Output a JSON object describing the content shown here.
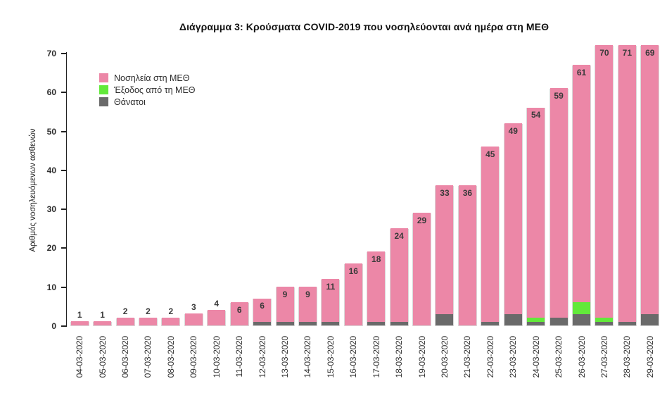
{
  "title": "Διάγραμμα 3: Κρούσματα COVID-2019 που νοσηλεύονται ανά ημέρα στη ΜΕΘ",
  "y_axis": {
    "label": "Αριθμός νοσηλευόμενων ασθενών",
    "ticks": [
      0,
      10,
      20,
      30,
      40,
      50,
      60,
      70
    ]
  },
  "legend": {
    "items": [
      {
        "label": "Νοσηλεία στη ΜΕΘ",
        "color": "#ec87a7"
      },
      {
        "label": "Έξοδος από τη ΜΕΘ",
        "color": "#62e93a"
      },
      {
        "label": "Θάνατοι",
        "color": "#6a6a6a"
      }
    ]
  },
  "chart_data": {
    "type": "bar",
    "stacked": true,
    "title": "Διάγραμμα 3: Κρούσματα COVID-2019 που νοσηλεύονται ανά ημέρα στη ΜΕΘ",
    "xlabel": "",
    "ylabel": "Αριθμός νοσηλευόμενων ασθενών",
    "ylim": [
      0,
      70
    ],
    "yticks": [
      0,
      10,
      20,
      30,
      40,
      50,
      60,
      70
    ],
    "grid": false,
    "legend_position": "top-left",
    "categories": [
      "04-03-2020",
      "05-03-2020",
      "06-03-2020",
      "07-03-2020",
      "08-03-2020",
      "09-03-2020",
      "10-03-2020",
      "11-03-2020",
      "12-03-2020",
      "13-03-2020",
      "14-03-2020",
      "15-03-2020",
      "16-03-2020",
      "17-03-2020",
      "18-03-2020",
      "19-03-2020",
      "20-03-2020",
      "21-03-2020",
      "22-03-2020",
      "23-03-2020",
      "24-03-2020",
      "25-03-2020",
      "26-03-2020",
      "27-03-2020",
      "28-03-2020",
      "29-03-2020"
    ],
    "series": [
      {
        "name": "Θάνατοι",
        "color": "#6a6a6a",
        "values": [
          0,
          0,
          0,
          0,
          0,
          0,
          0,
          0,
          1,
          1,
          1,
          1,
          0,
          1,
          1,
          0,
          3,
          0,
          1,
          3,
          1,
          2,
          3,
          1,
          1,
          3
        ]
      },
      {
        "name": "Έξοδος από τη ΜΕΘ",
        "color": "#62e93a",
        "values": [
          0,
          0,
          0,
          0,
          0,
          0,
          0,
          0,
          0,
          0,
          0,
          0,
          0,
          0,
          0,
          0,
          0,
          0,
          0,
          0,
          1,
          0,
          3,
          1,
          0,
          0
        ]
      },
      {
        "name": "Νοσηλεία στη ΜΕΘ",
        "color": "#ec87a7",
        "values": [
          1,
          1,
          2,
          2,
          2,
          3,
          4,
          6,
          6,
          9,
          9,
          11,
          16,
          18,
          24,
          29,
          33,
          36,
          45,
          49,
          54,
          59,
          61,
          70,
          71,
          69
        ]
      }
    ],
    "bar_labels": [
      1,
      1,
      2,
      2,
      2,
      3,
      4,
      6,
      6,
      9,
      9,
      11,
      16,
      18,
      24,
      29,
      33,
      36,
      45,
      49,
      54,
      59,
      61,
      70,
      71,
      69
    ],
    "bar_labels_show_series": "Νοσηλεία στη ΜΕΘ"
  }
}
